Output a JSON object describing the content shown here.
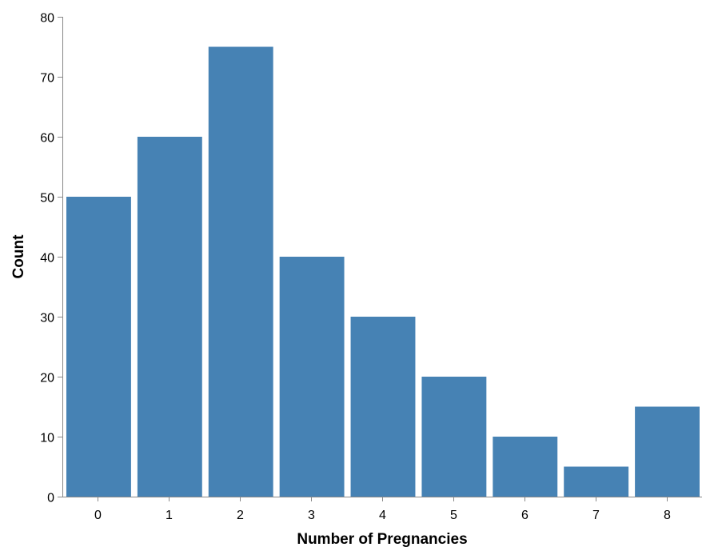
{
  "colors": {
    "bar": "#4682b4",
    "axis": "#888888",
    "text": "#000000"
  },
  "chart_data": {
    "type": "bar",
    "categories": [
      "0",
      "1",
      "2",
      "3",
      "4",
      "5",
      "6",
      "7",
      "8"
    ],
    "values": [
      50,
      60,
      75,
      40,
      30,
      20,
      10,
      5,
      15
    ],
    "xlabel": "Number of Pregnancies",
    "ylabel": "Count",
    "ylim": [
      0,
      80
    ],
    "yticks": [
      0,
      10,
      20,
      30,
      40,
      50,
      60,
      70,
      80
    ],
    "grid": false,
    "legend": "none"
  }
}
